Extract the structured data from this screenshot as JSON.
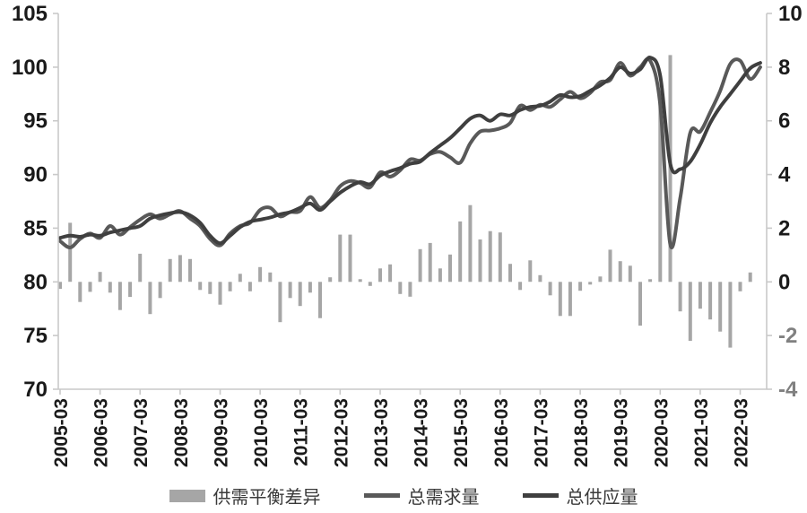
{
  "chart_data": {
    "type": "bar",
    "subtype": "combo-bar-line",
    "title": "",
    "background": "#ffffff",
    "axis_color": "#c9c9c9",
    "label_color": "#1a1a1a",
    "negative_right_label_color": "#808080",
    "grid": false,
    "legend_position": "bottom",
    "x_tick_labels": [
      "2005-03",
      "2006-03",
      "2007-03",
      "2008-03",
      "2009-03",
      "2010-03",
      "2011-03",
      "2012-03",
      "2013-03",
      "2014-03",
      "2015-03",
      "2016-03",
      "2017-03",
      "2018-03",
      "2019-03",
      "2020-03",
      "2021-03",
      "2022-03"
    ],
    "left_axis": {
      "min": 70,
      "max": 105,
      "step": 5,
      "ticks": [
        105,
        100,
        95,
        90,
        85,
        80,
        75,
        70
      ]
    },
    "right_axis": {
      "min": -4,
      "max": 10,
      "step": 2,
      "ticks": [
        10,
        8,
        6,
        4,
        2,
        0,
        -2,
        -4
      ]
    },
    "series": [
      {
        "name": "供需平衡差异",
        "type": "bar",
        "axis": "right",
        "color": "#a6a6a6",
        "start": "2005-03",
        "frequency": "quarterly",
        "values": [
          -0.26,
          2.2,
          -0.75,
          -0.37,
          0.37,
          -0.4,
          -1.05,
          -0.56,
          1.05,
          -1.2,
          -0.6,
          0.85,
          1.0,
          0.85,
          -0.3,
          -0.45,
          -0.85,
          -0.35,
          0.3,
          -0.35,
          0.55,
          0.35,
          -1.5,
          -0.6,
          -0.9,
          -0.4,
          -1.35,
          0.17,
          1.76,
          1.76,
          0.1,
          -0.15,
          0.5,
          0.65,
          -0.45,
          -0.55,
          1.22,
          1.45,
          0.5,
          1.02,
          2.25,
          2.86,
          1.58,
          1.89,
          1.84,
          0.67,
          -0.3,
          0.8,
          0.25,
          -0.5,
          -1.27,
          -1.27,
          -0.33,
          -0.1,
          0.2,
          1.2,
          0.77,
          0.6,
          -1.63,
          0.1,
          7.1,
          8.45,
          -1.1,
          -2.2,
          -1.0,
          -1.4,
          -1.85,
          -2.45,
          -0.35,
          0.35
        ]
      },
      {
        "name": "总需求量",
        "type": "line",
        "axis": "left",
        "color": "#595959",
        "start": "2005-03",
        "frequency": "quarterly",
        "values": [
          83.8,
          83.2,
          84.0,
          84.5,
          84.1,
          85.2,
          84.4,
          85.1,
          85.8,
          86.3,
          85.9,
          86.3,
          86.6,
          85.9,
          85.2,
          84.0,
          83.4,
          84.5,
          85.2,
          85.5,
          86.7,
          86.9,
          86.1,
          86.5,
          86.6,
          87.9,
          86.9,
          87.6,
          88.9,
          89.4,
          89.2,
          88.8,
          90.2,
          89.8,
          90.4,
          91.4,
          91.3,
          91.9,
          92.1,
          91.6,
          91.1,
          92.9,
          94.0,
          94.1,
          94.3,
          94.8,
          96.4,
          96.0,
          96.5,
          96.3,
          97.0,
          97.7,
          97.1,
          97.6,
          98.6,
          98.8,
          100.4,
          99.2,
          100.0,
          100.6,
          96.5,
          83.5,
          87.8,
          93.9,
          94.0,
          95.8,
          97.8,
          100.3,
          100.6,
          98.9,
          100.0
        ]
      },
      {
        "name": "总供应量",
        "type": "line",
        "axis": "left",
        "color": "#3f3f3f",
        "start": "2005-03",
        "frequency": "quarterly",
        "values": [
          84.1,
          84.3,
          84.2,
          84.4,
          84.3,
          84.6,
          84.8,
          85.0,
          85.2,
          85.9,
          86.2,
          86.4,
          86.5,
          86.2,
          85.5,
          84.3,
          83.6,
          84.3,
          85.1,
          85.6,
          85.8,
          86.0,
          86.3,
          86.5,
          86.9,
          87.3,
          86.7,
          87.5,
          88.3,
          88.9,
          89.3,
          89.1,
          89.9,
          90.3,
          90.6,
          91.0,
          91.2,
          92.0,
          92.7,
          93.4,
          94.3,
          95.2,
          95.5,
          95.0,
          95.6,
          95.5,
          96.0,
          96.3,
          96.4,
          96.8,
          97.4,
          97.2,
          97.3,
          97.8,
          98.3,
          99.0,
          100.0,
          99.4,
          99.8,
          100.9,
          99.2,
          91.0,
          90.5,
          91.2,
          92.8,
          94.8,
          96.3,
          97.5,
          98.7,
          99.9,
          100.4
        ]
      }
    ],
    "legend": [
      "供需平衡差异",
      "总需求量",
      "总供应量"
    ]
  }
}
